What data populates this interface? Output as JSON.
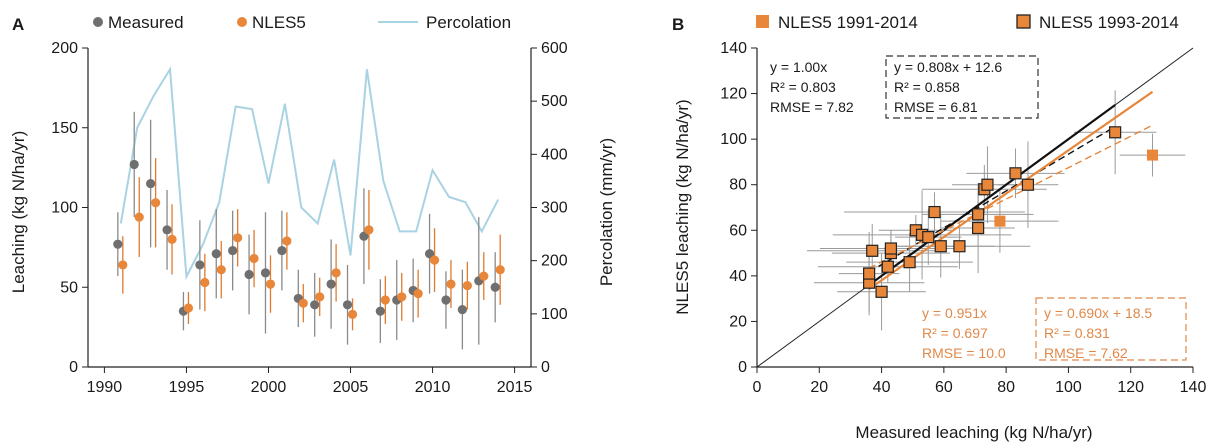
{
  "colors": {
    "measured": "#6f6f6f",
    "nles5": "#e8863a",
    "percolation": "#a9d3e2",
    "black": "#111111",
    "err_gray": "#8a8a8a",
    "err_orange": "#e07a2e",
    "stats_orange": "#e0894a"
  },
  "chart_data": [
    {
      "panel": "A",
      "type": "scatter",
      "xlabel": "",
      "ylabel": "Leaching (kg N/ha/yr)",
      "y2label": "Percolation (mm/yr)",
      "xlim": [
        1989,
        2016
      ],
      "ylim": [
        0,
        200
      ],
      "y2lim": [
        0,
        600
      ],
      "xticks": [
        "1990",
        "1995",
        "2000",
        "2005",
        "2010",
        "2015"
      ],
      "yticks": [
        "0",
        "50",
        "100",
        "150",
        "200"
      ],
      "y2ticks": [
        "0",
        "100",
        "200",
        "300",
        "400",
        "500",
        "600"
      ],
      "legend": [
        "Measured",
        "NLES5",
        "Percolation"
      ],
      "years": [
        1991,
        1992,
        1993,
        1994,
        1995,
        1996,
        1997,
        1998,
        1999,
        2000,
        2001,
        2002,
        2003,
        2004,
        2005,
        2006,
        2007,
        2008,
        2009,
        2010,
        2011,
        2012,
        2013,
        2014
      ],
      "series": [
        {
          "name": "Measured",
          "values": [
            77,
            127,
            115,
            86,
            35,
            64,
            71,
            73,
            58,
            59,
            73,
            43,
            39,
            52,
            39,
            82,
            35,
            42,
            48,
            71,
            42,
            36,
            54,
            50
          ],
          "err": [
            20,
            33,
            40,
            25,
            12,
            28,
            28,
            25,
            25,
            38,
            25,
            18,
            20,
            28,
            25,
            30,
            20,
            25,
            20,
            25,
            18,
            25,
            40,
            22
          ]
        },
        {
          "name": "NLES5",
          "values": [
            64,
            94,
            103,
            80,
            37,
            53,
            61,
            81,
            68,
            52,
            79,
            40,
            44,
            59,
            33,
            86,
            42,
            44,
            46,
            67,
            52,
            51,
            57,
            61
          ],
          "err": [
            18,
            25,
            28,
            22,
            10,
            18,
            18,
            18,
            18,
            18,
            18,
            12,
            12,
            18,
            10,
            25,
            15,
            15,
            15,
            20,
            15,
            15,
            15,
            22
          ]
        },
        {
          "name": "Percolation",
          "axis": "right",
          "values": [
            270,
            450,
            510,
            560,
            170,
            230,
            310,
            490,
            485,
            345,
            495,
            300,
            270,
            390,
            210,
            560,
            350,
            255,
            255,
            370,
            320,
            310,
            255,
            315
          ]
        }
      ]
    },
    {
      "panel": "B",
      "type": "scatter",
      "xlabel": "Measured leaching (kg N/ha/yr)",
      "ylabel": "NLES5 leaching (kg N/ha/yr)",
      "xlim": [
        0,
        140
      ],
      "ylim": [
        0,
        140
      ],
      "xticks": [
        "0",
        "20",
        "40",
        "60",
        "80",
        "100",
        "120",
        "140"
      ],
      "yticks": [
        "0",
        "20",
        "40",
        "60",
        "80",
        "100",
        "120",
        "140"
      ],
      "legend": [
        "NLES5 1991-2014",
        "NLES5 1993-2014"
      ],
      "series": [
        {
          "name": "NLES5 1991-2014",
          "points": [
            [
              78,
              64
            ],
            [
              127,
              93
            ]
          ]
        },
        {
          "name": "NLES5 1993-2014",
          "points": [
            [
              36,
              37
            ],
            [
              36,
              41
            ],
            [
              37,
              51
            ],
            [
              40,
              33
            ],
            [
              42,
              44
            ],
            [
              43,
              50
            ],
            [
              43,
              52
            ],
            [
              49,
              46
            ],
            [
              51,
              60
            ],
            [
              53,
              58
            ],
            [
              55,
              57
            ],
            [
              57,
              68
            ],
            [
              59,
              53
            ],
            [
              65,
              53
            ],
            [
              71,
              61
            ],
            [
              71,
              67
            ],
            [
              73,
              78
            ],
            [
              74,
              80
            ],
            [
              83,
              85
            ],
            [
              87,
              80
            ],
            [
              115,
              103
            ]
          ]
        }
      ],
      "fits": [
        {
          "label": "1:1",
          "slope": 1.0,
          "intercept": 0,
          "range": [
            0,
            140
          ]
        },
        {
          "label": "y = 1.00x",
          "slope": 1.0,
          "intercept": 0,
          "range": [
            36,
            115
          ],
          "style": "black-solid"
        },
        {
          "label": "y = 0.808x + 12.6",
          "slope": 0.808,
          "intercept": 12.6,
          "range": [
            36,
            115
          ],
          "style": "black-dashed"
        },
        {
          "label": "y = 0.951x",
          "slope": 0.951,
          "intercept": 0,
          "range": [
            36,
            127
          ],
          "style": "orange-solid"
        },
        {
          "label": "y = 0.690x + 18.5",
          "slope": 0.69,
          "intercept": 18.5,
          "range": [
            36,
            127
          ],
          "style": "orange-dashed"
        }
      ],
      "stats": {
        "black_left": [
          "y = 1.00x",
          "R² = 0.803",
          "RMSE = 7.82"
        ],
        "black_right": [
          "y = 0.808x + 12.6",
          "R² = 0.858",
          "RMSE = 6.81"
        ],
        "orange_left": [
          "y = 0.951x",
          "R² = 0.697",
          "RMSE = 10.0"
        ],
        "orange_right": [
          "y = 0.690x + 18.5",
          "R² = 0.831",
          "RMSE = 7.62"
        ]
      }
    }
  ]
}
